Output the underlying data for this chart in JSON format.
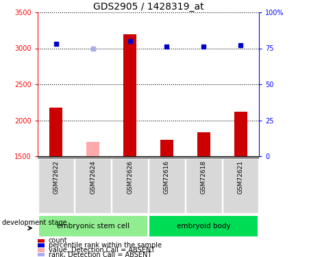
{
  "title": "GDS2905 / 1428319_at",
  "samples": [
    "GSM72622",
    "GSM72624",
    "GSM72626",
    "GSM72616",
    "GSM72618",
    "GSM72621"
  ],
  "groups": [
    {
      "name": "embryonic stem cell",
      "count": 3,
      "color": "#90ee90"
    },
    {
      "name": "embryoid body",
      "count": 3,
      "color": "#00dd55"
    }
  ],
  "count_values": [
    2180,
    null,
    3200,
    1730,
    1830,
    2120
  ],
  "count_absent_values": [
    null,
    1700,
    null,
    null,
    null,
    null
  ],
  "percentile_values": [
    78,
    null,
    80,
    76,
    76,
    77
  ],
  "percentile_absent_values": [
    null,
    75,
    null,
    null,
    null,
    null
  ],
  "ylim_left": [
    1500,
    3500
  ],
  "ylim_right": [
    0,
    100
  ],
  "yticks_left": [
    1500,
    2000,
    2500,
    3000,
    3500
  ],
  "yticks_right": [
    0,
    25,
    50,
    75,
    100
  ],
  "bar_color_present": "#cc0000",
  "bar_color_absent": "#ffaaaa",
  "dot_color_present": "#0000cc",
  "dot_color_absent": "#aaaaee",
  "bg_color": "#d8d8d8",
  "group_label": "development stage"
}
